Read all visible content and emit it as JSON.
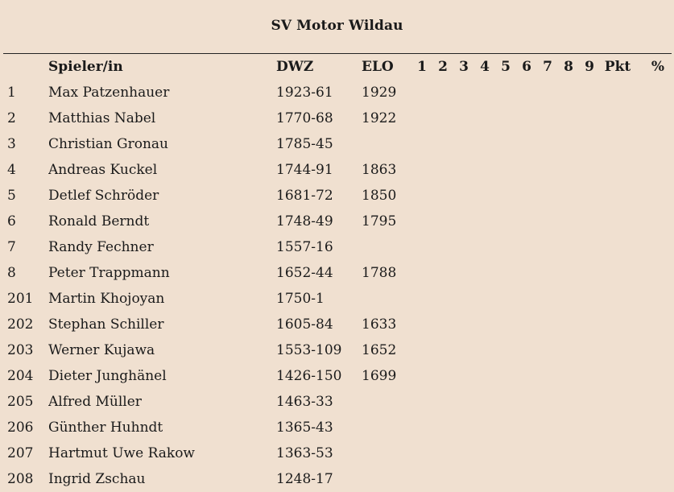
{
  "title": "SV Motor Wildau",
  "columns": {
    "nr": "",
    "name": "Spieler/in",
    "dwz": "DWZ",
    "elo": "ELO",
    "rounds": [
      "1",
      "2",
      "3",
      "4",
      "5",
      "6",
      "7",
      "8",
      "9"
    ],
    "pkt": "Pkt",
    "pct": "%"
  },
  "players": [
    {
      "nr": "1",
      "name": "Max Patzenhauer",
      "dwz": "1923-61",
      "elo": "1929"
    },
    {
      "nr": "2",
      "name": "Matthias Nabel",
      "dwz": "1770-68",
      "elo": "1922"
    },
    {
      "nr": "3",
      "name": "Christian Gronau",
      "dwz": "1785-45",
      "elo": ""
    },
    {
      "nr": "4",
      "name": "Andreas Kuckel",
      "dwz": "1744-91",
      "elo": "1863"
    },
    {
      "nr": "5",
      "name": "Detlef Schröder",
      "dwz": "1681-72",
      "elo": "1850"
    },
    {
      "nr": "6",
      "name": "Ronald Berndt",
      "dwz": "1748-49",
      "elo": "1795"
    },
    {
      "nr": "7",
      "name": "Randy Fechner",
      "dwz": "1557-16",
      "elo": ""
    },
    {
      "nr": "8",
      "name": "Peter Trappmann",
      "dwz": "1652-44",
      "elo": "1788"
    },
    {
      "nr": "201",
      "name": "Martin Khojoyan",
      "dwz": "1750-1",
      "elo": ""
    },
    {
      "nr": "202",
      "name": "Stephan Schiller",
      "dwz": "1605-84",
      "elo": "1633"
    },
    {
      "nr": "203",
      "name": "Werner Kujawa",
      "dwz": "1553-109",
      "elo": "1652"
    },
    {
      "nr": "204",
      "name": "Dieter Junghänel",
      "dwz": "1426-150",
      "elo": "1699"
    },
    {
      "nr": "205",
      "name": "Alfred Müller",
      "dwz": "1463-33",
      "elo": ""
    },
    {
      "nr": "206",
      "name": "Günther Huhndt",
      "dwz": "1365-43",
      "elo": ""
    },
    {
      "nr": "207",
      "name": "Hartmut Uwe Rakow",
      "dwz": "1363-53",
      "elo": ""
    },
    {
      "nr": "208",
      "name": "Ingrid Zschau",
      "dwz": "1248-17",
      "elo": ""
    }
  ]
}
